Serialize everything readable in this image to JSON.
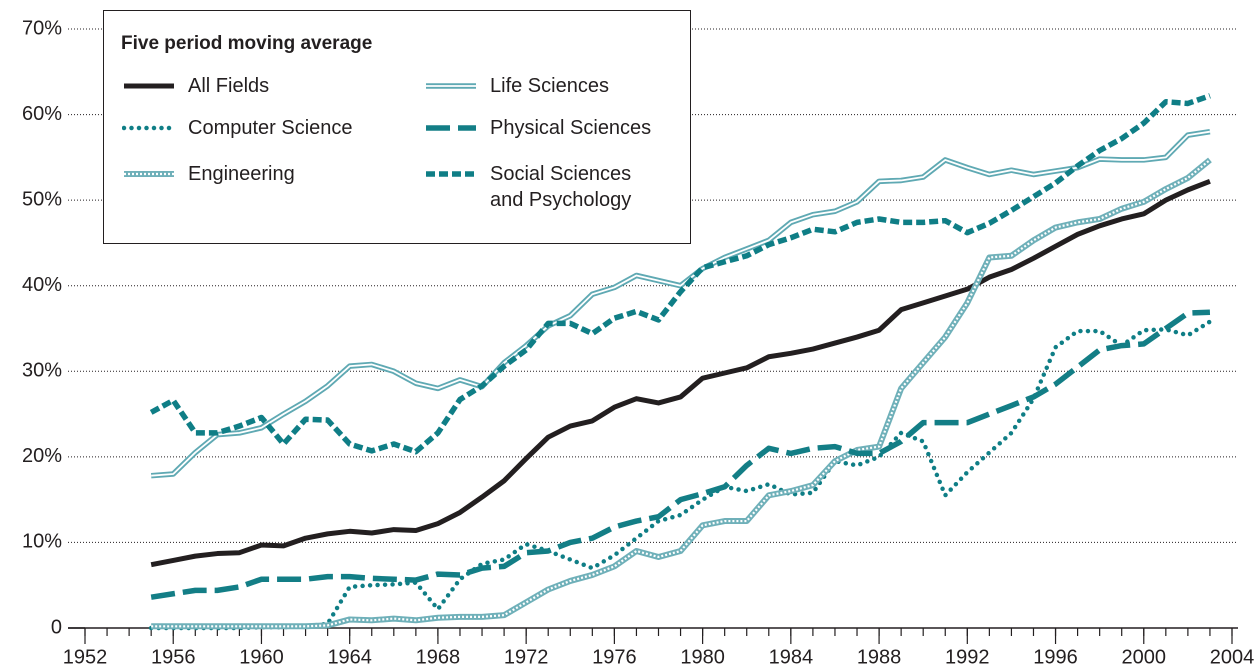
{
  "chart_data": {
    "type": "line",
    "legend_title": "Five period moving average",
    "x": [
      1955,
      1956,
      1957,
      1958,
      1959,
      1960,
      1961,
      1962,
      1963,
      1964,
      1965,
      1966,
      1967,
      1968,
      1969,
      1970,
      1971,
      1972,
      1973,
      1974,
      1975,
      1976,
      1977,
      1978,
      1979,
      1980,
      1981,
      1982,
      1983,
      1984,
      1985,
      1986,
      1987,
      1988,
      1989,
      1990,
      1991,
      1992,
      1993,
      1994,
      1995,
      1996,
      1997,
      1998,
      1999,
      2000,
      2001,
      2002,
      2003
    ],
    "series": [
      {
        "name": "All Fields",
        "color": "#231f20",
        "line_style": "solid",
        "values": [
          7.4,
          7.9,
          8.4,
          8.7,
          8.8,
          9.7,
          9.6,
          10.5,
          11.0,
          11.3,
          11.1,
          11.5,
          11.4,
          12.2,
          13.5,
          15.3,
          17.2,
          19.8,
          22.3,
          23.6,
          24.2,
          25.8,
          26.8,
          26.3,
          27.0,
          29.2,
          29.8,
          30.4,
          31.7,
          32.1,
          32.6,
          33.3,
          34.0,
          34.8,
          37.2,
          38.0,
          38.8,
          39.6,
          41.0,
          41.9,
          43.2,
          44.6,
          46.0,
          47.0,
          47.8,
          48.4,
          50.0,
          51.2,
          52.2
        ]
      },
      {
        "name": "Computer Science",
        "color": "#0f7e86",
        "line_style": "dotted",
        "values": [
          0,
          0,
          0,
          0,
          0,
          0.1,
          0.1,
          0.2,
          0.5,
          4.8,
          5.0,
          5.1,
          5.3,
          2.2,
          5.7,
          7.5,
          8.0,
          9.8,
          9.0,
          8.0,
          7.0,
          8.5,
          10.5,
          12.5,
          13.2,
          15.0,
          16.5,
          16.0,
          16.8,
          15.6,
          15.8,
          19.5,
          19.0,
          20.0,
          22.8,
          21.8,
          15.5,
          18.2,
          20.5,
          22.8,
          26.8,
          32.8,
          34.7,
          34.7,
          33.0,
          34.8,
          34.9,
          34.2,
          35.8
        ]
      },
      {
        "name": "Engineering",
        "color": "#6fb0b9",
        "line_style": "double-dotted",
        "values": [
          0.2,
          0.2,
          0.2,
          0.2,
          0.2,
          0.2,
          0.2,
          0.2,
          0.3,
          1.0,
          0.9,
          1.1,
          0.9,
          1.2,
          1.3,
          1.3,
          1.5,
          3.0,
          4.5,
          5.5,
          6.2,
          7.2,
          9.0,
          8.3,
          9.0,
          12.0,
          12.5,
          12.5,
          15.5,
          16.0,
          16.7,
          19.5,
          20.8,
          21.2,
          28.0,
          31.0,
          34.0,
          38.0,
          43.3,
          43.5,
          45.3,
          46.8,
          47.4,
          47.8,
          49.0,
          49.8,
          51.3,
          52.6,
          54.7
        ]
      },
      {
        "name": "Life Sciences",
        "color": "#5fa9b3",
        "line_style": "double",
        "values": [
          17.8,
          18.0,
          20.5,
          22.6,
          22.8,
          23.4,
          25.0,
          26.5,
          28.3,
          30.6,
          30.8,
          30.0,
          28.6,
          28.0,
          29.0,
          28.2,
          31.0,
          33.0,
          35.3,
          36.5,
          39.0,
          39.8,
          41.2,
          40.6,
          40.0,
          42.0,
          43.3,
          44.3,
          45.3,
          47.4,
          48.3,
          48.7,
          49.8,
          52.2,
          52.3,
          52.7,
          54.7,
          53.8,
          53.0,
          53.5,
          53.0,
          53.4,
          53.8,
          54.8,
          54.7,
          54.7,
          55.0,
          57.6,
          58.0
        ]
      },
      {
        "name": "Physical Sciences",
        "color": "#137e86",
        "line_style": "dashed-long",
        "values": [
          3.6,
          4.0,
          4.4,
          4.4,
          4.8,
          5.7,
          5.7,
          5.7,
          6.0,
          6.0,
          5.8,
          5.7,
          5.6,
          6.3,
          6.2,
          7.0,
          7.2,
          8.8,
          9.0,
          10.0,
          10.5,
          11.8,
          12.5,
          13.0,
          15.0,
          15.7,
          16.5,
          19.0,
          21.0,
          20.4,
          21.0,
          21.2,
          20.4,
          20.4,
          21.8,
          24.0,
          24.0,
          24.0,
          25.0,
          26.0,
          27.0,
          28.5,
          30.5,
          32.5,
          33.0,
          33.2,
          35.0,
          36.8,
          36.9
        ]
      },
      {
        "name": "Social Sciences and Psychology",
        "color": "#0f7e86",
        "line_style": "dashed",
        "values": [
          25.2,
          26.6,
          22.8,
          22.8,
          23.6,
          24.6,
          21.5,
          24.4,
          24.3,
          21.5,
          20.7,
          21.5,
          20.6,
          22.8,
          26.7,
          28.3,
          30.6,
          32.5,
          35.6,
          35.6,
          34.4,
          36.2,
          37.0,
          36.0,
          39.3,
          42.1,
          42.8,
          43.5,
          44.8,
          45.6,
          46.6,
          46.3,
          47.4,
          47.8,
          47.4,
          47.4,
          47.6,
          46.2,
          47.3,
          48.8,
          50.4,
          52.0,
          54.0,
          55.8,
          57.2,
          59.0,
          61.5,
          61.3,
          62.2
        ]
      }
    ],
    "xlim": [
      1952,
      2004
    ],
    "xticks": [
      1952,
      1956,
      1960,
      1964,
      1968,
      1972,
      1976,
      1980,
      1984,
      1988,
      1992,
      1996,
      2000,
      2004
    ],
    "xminorticks": [
      1952,
      1953,
      1954,
      1955,
      1956,
      1957,
      1958,
      1959,
      1960,
      1961,
      1962,
      1963,
      1964,
      1965,
      1966,
      1967,
      1968,
      1969,
      1970,
      1971,
      1972,
      1973,
      1974,
      1975,
      1976,
      1977,
      1978,
      1979,
      1980,
      1981,
      1982,
      1983,
      1984,
      1985,
      1986,
      1987,
      1988,
      1989,
      1990,
      1991,
      1992,
      1993,
      1994,
      1995,
      1996,
      1997,
      1998,
      1999,
      2000,
      2001,
      2002,
      2003,
      2004
    ],
    "ylim": [
      0,
      70
    ],
    "yticks": [
      0,
      {
        "value": 10,
        "label": "10%"
      },
      {
        "value": 20,
        "label": "20%"
      },
      {
        "value": 30,
        "label": "30%"
      },
      {
        "value": 40,
        "label": "40%"
      },
      {
        "value": 50,
        "label": "50%"
      },
      {
        "value": 60,
        "label": "60%"
      },
      {
        "value": 70,
        "label": "70%"
      }
    ],
    "grid": true
  }
}
